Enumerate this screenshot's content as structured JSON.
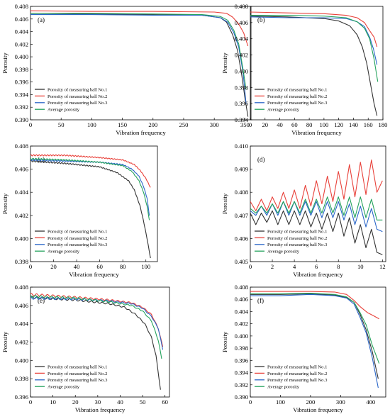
{
  "colors": {
    "No.1": "#333333",
    "No.2": "#e8413a",
    "No.3": "#2a66c8",
    "Average": "#25a35d"
  },
  "legend_labels": [
    "Porosity of measuring ball No.1",
    "Porosity of measuring ball No.2",
    "Porosity of measuring ball No.3",
    "Average porosity"
  ],
  "chart_data": [
    {
      "type": "line",
      "panel_label": "(a)",
      "xlabel": "Vibration frequency",
      "ylabel": "Porosity",
      "xlim": [
        0,
        360
      ],
      "ylim": [
        0.39,
        0.408
      ],
      "xticks": [
        0,
        50,
        100,
        150,
        200,
        250,
        300,
        350
      ],
      "yticks": [
        0.39,
        0.392,
        0.394,
        0.396,
        0.398,
        0.4,
        0.402,
        0.404,
        0.406,
        0.408
      ],
      "ytick_labels": [
        "0.390",
        "0.392",
        "0.394",
        "0.396",
        "0.398",
        "0.400",
        "0.402",
        "0.404",
        "0.406",
        "0.408"
      ],
      "ripple": 0,
      "legend": "bottom-left",
      "series": [
        {
          "key": "No.1",
          "name": "Porosity of measuring ball No.1",
          "x": [
            0,
            100,
            200,
            280,
            310,
            320,
            330,
            338,
            345,
            350,
            355
          ],
          "y": [
            0.4069,
            0.4068,
            0.4067,
            0.4066,
            0.4062,
            0.4055,
            0.4035,
            0.401,
            0.397,
            0.3935,
            0.3905
          ]
        },
        {
          "key": "No.2",
          "name": "Porosity of measuring ball No.2",
          "x": [
            0,
            100,
            200,
            300,
            320,
            330,
            340,
            348,
            355
          ],
          "y": [
            0.4073,
            0.4072,
            0.4072,
            0.4071,
            0.4069,
            0.4063,
            0.4052,
            0.4038,
            0.4017
          ]
        },
        {
          "key": "No.3",
          "name": "Porosity of measuring ball No.3",
          "x": [
            0,
            100,
            200,
            280,
            310,
            322,
            332,
            340,
            347,
            352
          ],
          "y": [
            0.4067,
            0.4067,
            0.4066,
            0.4066,
            0.4062,
            0.4055,
            0.4038,
            0.4015,
            0.3975,
            0.3925
          ]
        },
        {
          "key": "Average",
          "name": "Average porosity",
          "x": [
            0,
            100,
            200,
            280,
            310,
            322,
            332,
            340,
            347,
            352
          ],
          "y": [
            0.4069,
            0.4069,
            0.4068,
            0.4067,
            0.4064,
            0.4058,
            0.4042,
            0.402,
            0.398,
            0.3948
          ]
        }
      ]
    },
    {
      "type": "line",
      "panel_label": "(b)",
      "xlabel": "Vibration frequency",
      "ylabel": "Porosity",
      "xlim": [
        0,
        180
      ],
      "ylim": [
        0.394,
        0.408
      ],
      "xticks": [
        0,
        20,
        40,
        60,
        80,
        100,
        120,
        140,
        160,
        180
      ],
      "yticks": [
        0.394,
        0.396,
        0.398,
        0.4,
        0.402,
        0.404,
        0.406,
        0.408
      ],
      "ytick_labels": [
        "0.394",
        "0.396",
        "0.398",
        "0.400",
        "0.402",
        "0.404",
        "0.406",
        "0.408"
      ],
      "ripple": 0,
      "legend": "bottom-left",
      "series": [
        {
          "key": "No.1",
          "name": "Porosity of measuring ball No.1",
          "x": [
            0,
            50,
            100,
            120,
            135,
            145,
            152,
            158,
            163,
            168,
            172
          ],
          "y": [
            0.4068,
            0.4067,
            0.4065,
            0.4062,
            0.4056,
            0.4045,
            0.403,
            0.401,
            0.3985,
            0.396,
            0.3945
          ]
        },
        {
          "key": "No.2",
          "name": "Porosity of measuring ball No.2",
          "x": [
            0,
            50,
            100,
            130,
            145,
            155,
            162,
            168,
            172
          ],
          "y": [
            0.4073,
            0.4072,
            0.4071,
            0.4069,
            0.4066,
            0.406,
            0.405,
            0.4042,
            0.403
          ]
        },
        {
          "key": "No.3",
          "name": "Porosity of measuring ball No.3",
          "x": [
            0,
            50,
            100,
            130,
            145,
            155,
            162,
            167,
            172
          ],
          "y": [
            0.4067,
            0.4066,
            0.4066,
            0.4065,
            0.4061,
            0.4055,
            0.4042,
            0.4028,
            0.4008
          ]
        },
        {
          "key": "Average",
          "name": "Average porosity",
          "x": [
            0,
            50,
            100,
            130,
            145,
            155,
            162,
            168,
            173
          ],
          "y": [
            0.4069,
            0.4069,
            0.4068,
            0.4066,
            0.4061,
            0.4053,
            0.404,
            0.4015,
            0.3987
          ]
        }
      ]
    },
    {
      "type": "line",
      "panel_label": "(c)",
      "xlabel": "Vibration frequency",
      "ylabel": "Porosity",
      "xlim": [
        0,
        110
      ],
      "ylim": [
        0.398,
        0.408
      ],
      "xticks": [
        0,
        20,
        40,
        60,
        80,
        100
      ],
      "yticks": [
        0.398,
        0.4,
        0.402,
        0.404,
        0.406,
        0.408
      ],
      "ytick_labels": [
        "0.398",
        "0.400",
        "0.402",
        "0.404",
        "0.406",
        "0.408"
      ],
      "ripple": 6e-05,
      "legend": "bottom-left",
      "series": [
        {
          "key": "No.1",
          "name": "Porosity of measuring ball No.1",
          "x": [
            0,
            30,
            60,
            75,
            85,
            90,
            95,
            98,
            101,
            104
          ],
          "y": [
            0.4067,
            0.4065,
            0.4062,
            0.4057,
            0.405,
            0.4042,
            0.4028,
            0.4015,
            0.4,
            0.3983
          ]
        },
        {
          "key": "No.2",
          "name": "Porosity of measuring ball No.2",
          "x": [
            0,
            30,
            60,
            80,
            90,
            95,
            100,
            104
          ],
          "y": [
            0.4072,
            0.4072,
            0.407,
            0.4068,
            0.4064,
            0.4059,
            0.4052,
            0.4044
          ]
        },
        {
          "key": "No.3",
          "name": "Porosity of measuring ball No.3",
          "x": [
            0,
            30,
            60,
            80,
            88,
            94,
            98,
            101,
            103
          ],
          "y": [
            0.4068,
            0.4067,
            0.4066,
            0.4064,
            0.406,
            0.4054,
            0.4045,
            0.4035,
            0.402
          ]
        },
        {
          "key": "Average",
          "name": "Average porosity",
          "x": [
            0,
            30,
            60,
            80,
            88,
            94,
            98,
            101,
            103
          ],
          "y": [
            0.4069,
            0.4068,
            0.4066,
            0.4063,
            0.4058,
            0.405,
            0.404,
            0.4028,
            0.4016
          ]
        }
      ]
    },
    {
      "type": "line",
      "panel_label": "(d)",
      "xlabel": "Vibration frequency",
      "ylabel": "Porosity",
      "xlim": [
        0,
        12.3
      ],
      "ylim": [
        0.405,
        0.41
      ],
      "xticks": [
        0,
        2,
        4,
        6,
        8,
        10,
        12
      ],
      "yticks": [
        0.405,
        0.406,
        0.407,
        0.408,
        0.409,
        0.41
      ],
      "ytick_labels": [
        "0.405",
        "0.406",
        "0.407",
        "0.408",
        "0.409",
        "0.410"
      ],
      "ripple": 0,
      "legend": "bottom-left",
      "series": [
        {
          "key": "No.1",
          "name": "Porosity of measuring ball No.1",
          "x": [
            0,
            0.5,
            1.0,
            1.5,
            2.0,
            2.5,
            3.0,
            3.5,
            4.0,
            4.5,
            5.0,
            5.5,
            6.0,
            6.5,
            7.0,
            7.5,
            8.0,
            8.5,
            9.0,
            9.5,
            10.0,
            10.5,
            11.0,
            11.5,
            12.0
          ],
          "y": [
            0.4071,
            0.4066,
            0.4071,
            0.4067,
            0.4072,
            0.4066,
            0.4072,
            0.4066,
            0.4072,
            0.4066,
            0.4072,
            0.4065,
            0.4071,
            0.4064,
            0.4071,
            0.4063,
            0.4071,
            0.4061,
            0.4069,
            0.4058,
            0.4066,
            0.4056,
            0.4064,
            0.4054,
            0.4053
          ]
        },
        {
          "key": "No.2",
          "name": "Porosity of measuring ball No.2",
          "x": [
            0,
            0.5,
            1.0,
            1.5,
            2.0,
            2.5,
            3.0,
            3.5,
            4.0,
            4.5,
            5.0,
            5.5,
            6.0,
            6.5,
            7.0,
            7.5,
            8.0,
            8.5,
            9.0,
            9.5,
            10.0,
            10.5,
            11.0,
            11.5,
            12.0
          ],
          "y": [
            0.4076,
            0.4072,
            0.4077,
            0.4072,
            0.4078,
            0.4073,
            0.408,
            0.4073,
            0.4081,
            0.4073,
            0.4083,
            0.4074,
            0.4085,
            0.4075,
            0.4087,
            0.4076,
            0.4089,
            0.4077,
            0.4092,
            0.4078,
            0.4093,
            0.4079,
            0.4094,
            0.408,
            0.4085
          ]
        },
        {
          "key": "No.3",
          "name": "Porosity of measuring ball No.3",
          "x": [
            0,
            0.5,
            1.0,
            1.5,
            2.0,
            2.5,
            3.0,
            3.5,
            4.0,
            4.5,
            5.0,
            5.5,
            6.0,
            6.5,
            7.0,
            7.5,
            8.0,
            8.5,
            9.0,
            9.5,
            10.0,
            10.5,
            11.0,
            11.5,
            12.0
          ],
          "y": [
            0.4072,
            0.407,
            0.4074,
            0.407,
            0.4075,
            0.407,
            0.4076,
            0.407,
            0.4076,
            0.407,
            0.4076,
            0.407,
            0.4076,
            0.4069,
            0.4076,
            0.4069,
            0.4076,
            0.4068,
            0.4075,
            0.4066,
            0.4074,
            0.4065,
            0.4073,
            0.4064,
            0.4063
          ]
        },
        {
          "key": "Average",
          "name": "Average porosity",
          "x": [
            0,
            0.5,
            1.0,
            1.5,
            2.0,
            2.5,
            3.0,
            3.5,
            4.0,
            4.5,
            5.0,
            5.5,
            6.0,
            6.5,
            7.0,
            7.5,
            8.0,
            8.5,
            9.0,
            9.5,
            10.0,
            10.5,
            11.0,
            11.5,
            12.0
          ],
          "y": [
            0.4073,
            0.4071,
            0.4074,
            0.4071,
            0.4075,
            0.4071,
            0.4076,
            0.4071,
            0.4076,
            0.4071,
            0.4077,
            0.4071,
            0.4077,
            0.4071,
            0.4078,
            0.4071,
            0.4078,
            0.407,
            0.4078,
            0.4069,
            0.4078,
            0.4069,
            0.4077,
            0.4068,
            0.4068
          ]
        }
      ]
    },
    {
      "type": "line",
      "panel_label": "(e)",
      "xlabel": "Vibration frequency",
      "ylabel": "Porosity",
      "xlim": [
        0,
        62
      ],
      "ylim": [
        0.396,
        0.408
      ],
      "xticks": [
        0,
        10,
        20,
        30,
        40,
        50,
        60
      ],
      "yticks": [
        0.396,
        0.398,
        0.4,
        0.402,
        0.404,
        0.406,
        0.408
      ],
      "ytick_labels": [
        "0.396",
        "0.398",
        "0.400",
        "0.402",
        "0.404",
        "0.406",
        "0.408"
      ],
      "ripple": 0.00012,
      "legend": "bottom-left",
      "series": [
        {
          "key": "No.1",
          "name": "Porosity of measuring ball No.1",
          "x": [
            0,
            20,
            35,
            42,
            47,
            51,
            54,
            56,
            58
          ],
          "y": [
            0.4069,
            0.4066,
            0.4062,
            0.4058,
            0.405,
            0.404,
            0.4025,
            0.4005,
            0.3968
          ]
        },
        {
          "key": "No.2",
          "name": "Porosity of measuring ball No.2",
          "x": [
            0,
            20,
            35,
            45,
            50,
            54,
            57,
            59
          ],
          "y": [
            0.4072,
            0.4069,
            0.4066,
            0.4063,
            0.4058,
            0.405,
            0.4035,
            0.4015
          ]
        },
        {
          "key": "No.3",
          "name": "Porosity of measuring ball No.3",
          "x": [
            0,
            20,
            35,
            45,
            50,
            54,
            57,
            59
          ],
          "y": [
            0.4068,
            0.4067,
            0.4065,
            0.4062,
            0.4057,
            0.4048,
            0.4035,
            0.4012
          ]
        },
        {
          "key": "Average",
          "name": "Average porosity",
          "x": [
            0,
            20,
            35,
            45,
            50,
            54,
            57,
            58.5
          ],
          "y": [
            0.407,
            0.4068,
            0.4064,
            0.406,
            0.4054,
            0.4043,
            0.4022,
            0.4002
          ]
        }
      ]
    },
    {
      "type": "line",
      "panel_label": "(f)",
      "xlabel": "Vibration frequency",
      "ylabel": "Porosity",
      "xlim": [
        0,
        450
      ],
      "ylim": [
        0.39,
        0.408
      ],
      "xticks": [
        0,
        100,
        200,
        300,
        400
      ],
      "yticks": [
        0.39,
        0.392,
        0.394,
        0.396,
        0.398,
        0.4,
        0.402,
        0.404,
        0.406,
        0.408
      ],
      "ytick_labels": [
        "0.390",
        "0.392",
        "0.394",
        "0.396",
        "0.398",
        "0.400",
        "0.402",
        "0.404",
        "0.406",
        "0.408"
      ],
      "ripple": 0,
      "legend": "bottom-left",
      "series": [
        {
          "key": "No.1",
          "name": "Porosity of measuring ball No.1",
          "x": [
            0,
            100,
            200,
            280,
            320,
            345,
            365,
            385,
            405,
            425
          ],
          "y": [
            0.4068,
            0.4068,
            0.4069,
            0.4067,
            0.4063,
            0.4055,
            0.4035,
            0.401,
            0.3975,
            0.393
          ]
        },
        {
          "key": "No.2",
          "name": "Porosity of measuring ball No.2",
          "x": [
            0,
            100,
            200,
            280,
            320,
            345,
            365,
            390,
            410,
            428
          ],
          "y": [
            0.4073,
            0.4073,
            0.4073,
            0.4072,
            0.4068,
            0.4058,
            0.4048,
            0.4038,
            0.4033,
            0.4028
          ]
        },
        {
          "key": "No.3",
          "name": "Porosity of measuring ball No.3",
          "x": [
            0,
            100,
            200,
            280,
            320,
            345,
            365,
            385,
            405,
            425
          ],
          "y": [
            0.4066,
            0.4066,
            0.4068,
            0.4066,
            0.4062,
            0.4052,
            0.403,
            0.4005,
            0.3965,
            0.3915
          ]
        },
        {
          "key": "Average",
          "name": "Average porosity",
          "x": [
            0,
            100,
            200,
            280,
            320,
            345,
            365,
            385,
            405,
            428
          ],
          "y": [
            0.4069,
            0.4069,
            0.407,
            0.4068,
            0.4064,
            0.4055,
            0.4038,
            0.4018,
            0.3985,
            0.3955
          ]
        }
      ]
    }
  ]
}
